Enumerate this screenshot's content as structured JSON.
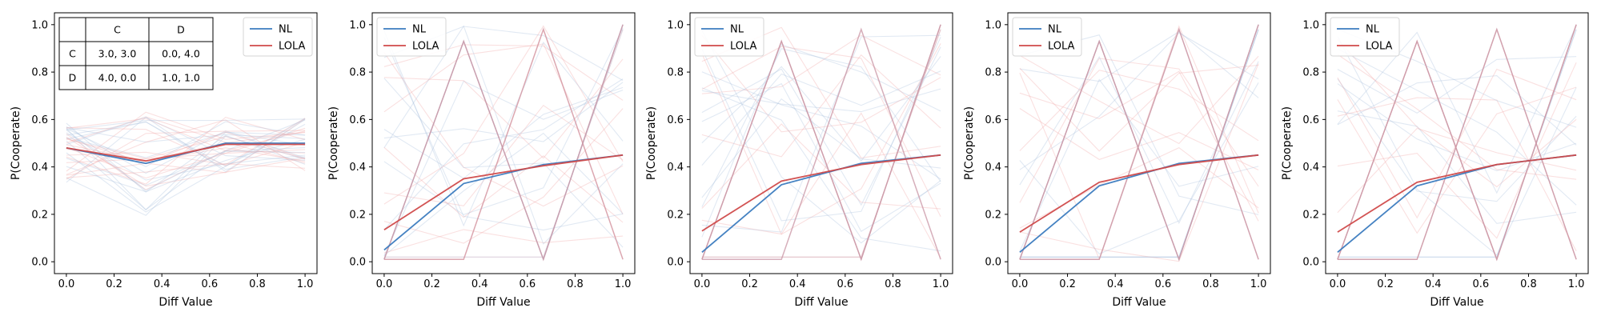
{
  "chart_data": [
    {
      "type": "line",
      "xlabel": "Diff Value",
      "ylabel": "P(Cooperate)",
      "xlim": [
        -0.05,
        1.05
      ],
      "ylim": [
        -0.05,
        1.05
      ],
      "xticks": [
        "0.0",
        "0.2",
        "0.4",
        "0.6",
        "0.8",
        "1.0"
      ],
      "yticks": [
        "0.0",
        "0.2",
        "0.4",
        "0.6",
        "0.8",
        "1.0"
      ],
      "legend": {
        "placement": "top-right",
        "entries": [
          "NL",
          "LOLA"
        ]
      },
      "payoff_table": {
        "columns": [
          "",
          "C",
          "D"
        ],
        "rows": [
          [
            "C",
            "3.0, 3.0",
            "0.0, 4.0"
          ],
          [
            "D",
            "4.0, 0.0",
            "1.0, 1.0"
          ]
        ]
      },
      "series": [
        {
          "name": "NL",
          "color": "#3b7bbf",
          "x": [
            0,
            0.333,
            0.667,
            1
          ],
          "y": [
            0.48,
            0.415,
            0.5,
            0.5
          ]
        },
        {
          "name": "LOLA",
          "color": "#d04a4a",
          "x": [
            0,
            0.333,
            0.667,
            1
          ],
          "y": [
            0.48,
            0.425,
            0.495,
            0.495
          ]
        }
      ]
    },
    {
      "type": "line",
      "xlabel": "Diff Value",
      "ylabel": "P(Cooperate)",
      "xlim": [
        -0.05,
        1.05
      ],
      "ylim": [
        -0.05,
        1.05
      ],
      "xticks": [
        "0.0",
        "0.2",
        "0.4",
        "0.6",
        "0.8",
        "1.0"
      ],
      "yticks": [
        "0.0",
        "0.2",
        "0.4",
        "0.6",
        "0.8",
        "1.0"
      ],
      "legend": {
        "placement": "top-left",
        "entries": [
          "NL",
          "LOLA"
        ]
      },
      "series": [
        {
          "name": "NL",
          "color": "#3b7bbf",
          "x": [
            0,
            0.333,
            0.667,
            1
          ],
          "y": [
            0.05,
            0.33,
            0.41,
            0.45
          ]
        },
        {
          "name": "LOLA",
          "color": "#d04a4a",
          "x": [
            0,
            0.333,
            0.667,
            1
          ],
          "y": [
            0.135,
            0.35,
            0.405,
            0.45
          ]
        }
      ]
    },
    {
      "type": "line",
      "xlabel": "Diff Value",
      "ylabel": "P(Cooperate)",
      "xlim": [
        -0.05,
        1.05
      ],
      "ylim": [
        -0.05,
        1.05
      ],
      "xticks": [
        "0.0",
        "0.2",
        "0.4",
        "0.6",
        "0.8",
        "1.0"
      ],
      "yticks": [
        "0.0",
        "0.2",
        "0.4",
        "0.6",
        "0.8",
        "1.0"
      ],
      "legend": {
        "placement": "top-left",
        "entries": [
          "NL",
          "LOLA"
        ]
      },
      "series": [
        {
          "name": "NL",
          "color": "#3b7bbf",
          "x": [
            0,
            0.333,
            0.667,
            1
          ],
          "y": [
            0.04,
            0.325,
            0.415,
            0.45
          ]
        },
        {
          "name": "LOLA",
          "color": "#d04a4a",
          "x": [
            0,
            0.333,
            0.667,
            1
          ],
          "y": [
            0.13,
            0.34,
            0.41,
            0.45
          ]
        }
      ]
    },
    {
      "type": "line",
      "xlabel": "Diff Value",
      "ylabel": "P(Cooperate)",
      "xlim": [
        -0.05,
        1.05
      ],
      "ylim": [
        -0.05,
        1.05
      ],
      "xticks": [
        "0.0",
        "0.2",
        "0.4",
        "0.6",
        "0.8",
        "1.0"
      ],
      "yticks": [
        "0.0",
        "0.2",
        "0.4",
        "0.6",
        "0.8",
        "1.0"
      ],
      "legend": {
        "placement": "top-left",
        "entries": [
          "NL",
          "LOLA"
        ]
      },
      "series": [
        {
          "name": "NL",
          "color": "#3b7bbf",
          "x": [
            0,
            0.333,
            0.667,
            1
          ],
          "y": [
            0.04,
            0.32,
            0.415,
            0.45
          ]
        },
        {
          "name": "LOLA",
          "color": "#d04a4a",
          "x": [
            0,
            0.333,
            0.667,
            1
          ],
          "y": [
            0.125,
            0.335,
            0.41,
            0.45
          ]
        }
      ]
    },
    {
      "type": "line",
      "xlabel": "Diff Value",
      "ylabel": "P(Cooperate)",
      "xlim": [
        -0.05,
        1.05
      ],
      "ylim": [
        -0.05,
        1.05
      ],
      "xticks": [
        "0.0",
        "0.2",
        "0.4",
        "0.6",
        "0.8",
        "1.0"
      ],
      "yticks": [
        "0.0",
        "0.2",
        "0.4",
        "0.6",
        "0.8",
        "1.0"
      ],
      "legend": {
        "placement": "top-left",
        "entries": [
          "NL",
          "LOLA"
        ]
      },
      "series": [
        {
          "name": "NL",
          "color": "#3b7bbf",
          "x": [
            0,
            0.333,
            0.667,
            1
          ],
          "y": [
            0.04,
            0.32,
            0.41,
            0.45
          ]
        },
        {
          "name": "LOLA",
          "color": "#d04a4a",
          "x": [
            0,
            0.333,
            0.667,
            1
          ],
          "y": [
            0.125,
            0.335,
            0.41,
            0.45
          ]
        }
      ]
    }
  ]
}
